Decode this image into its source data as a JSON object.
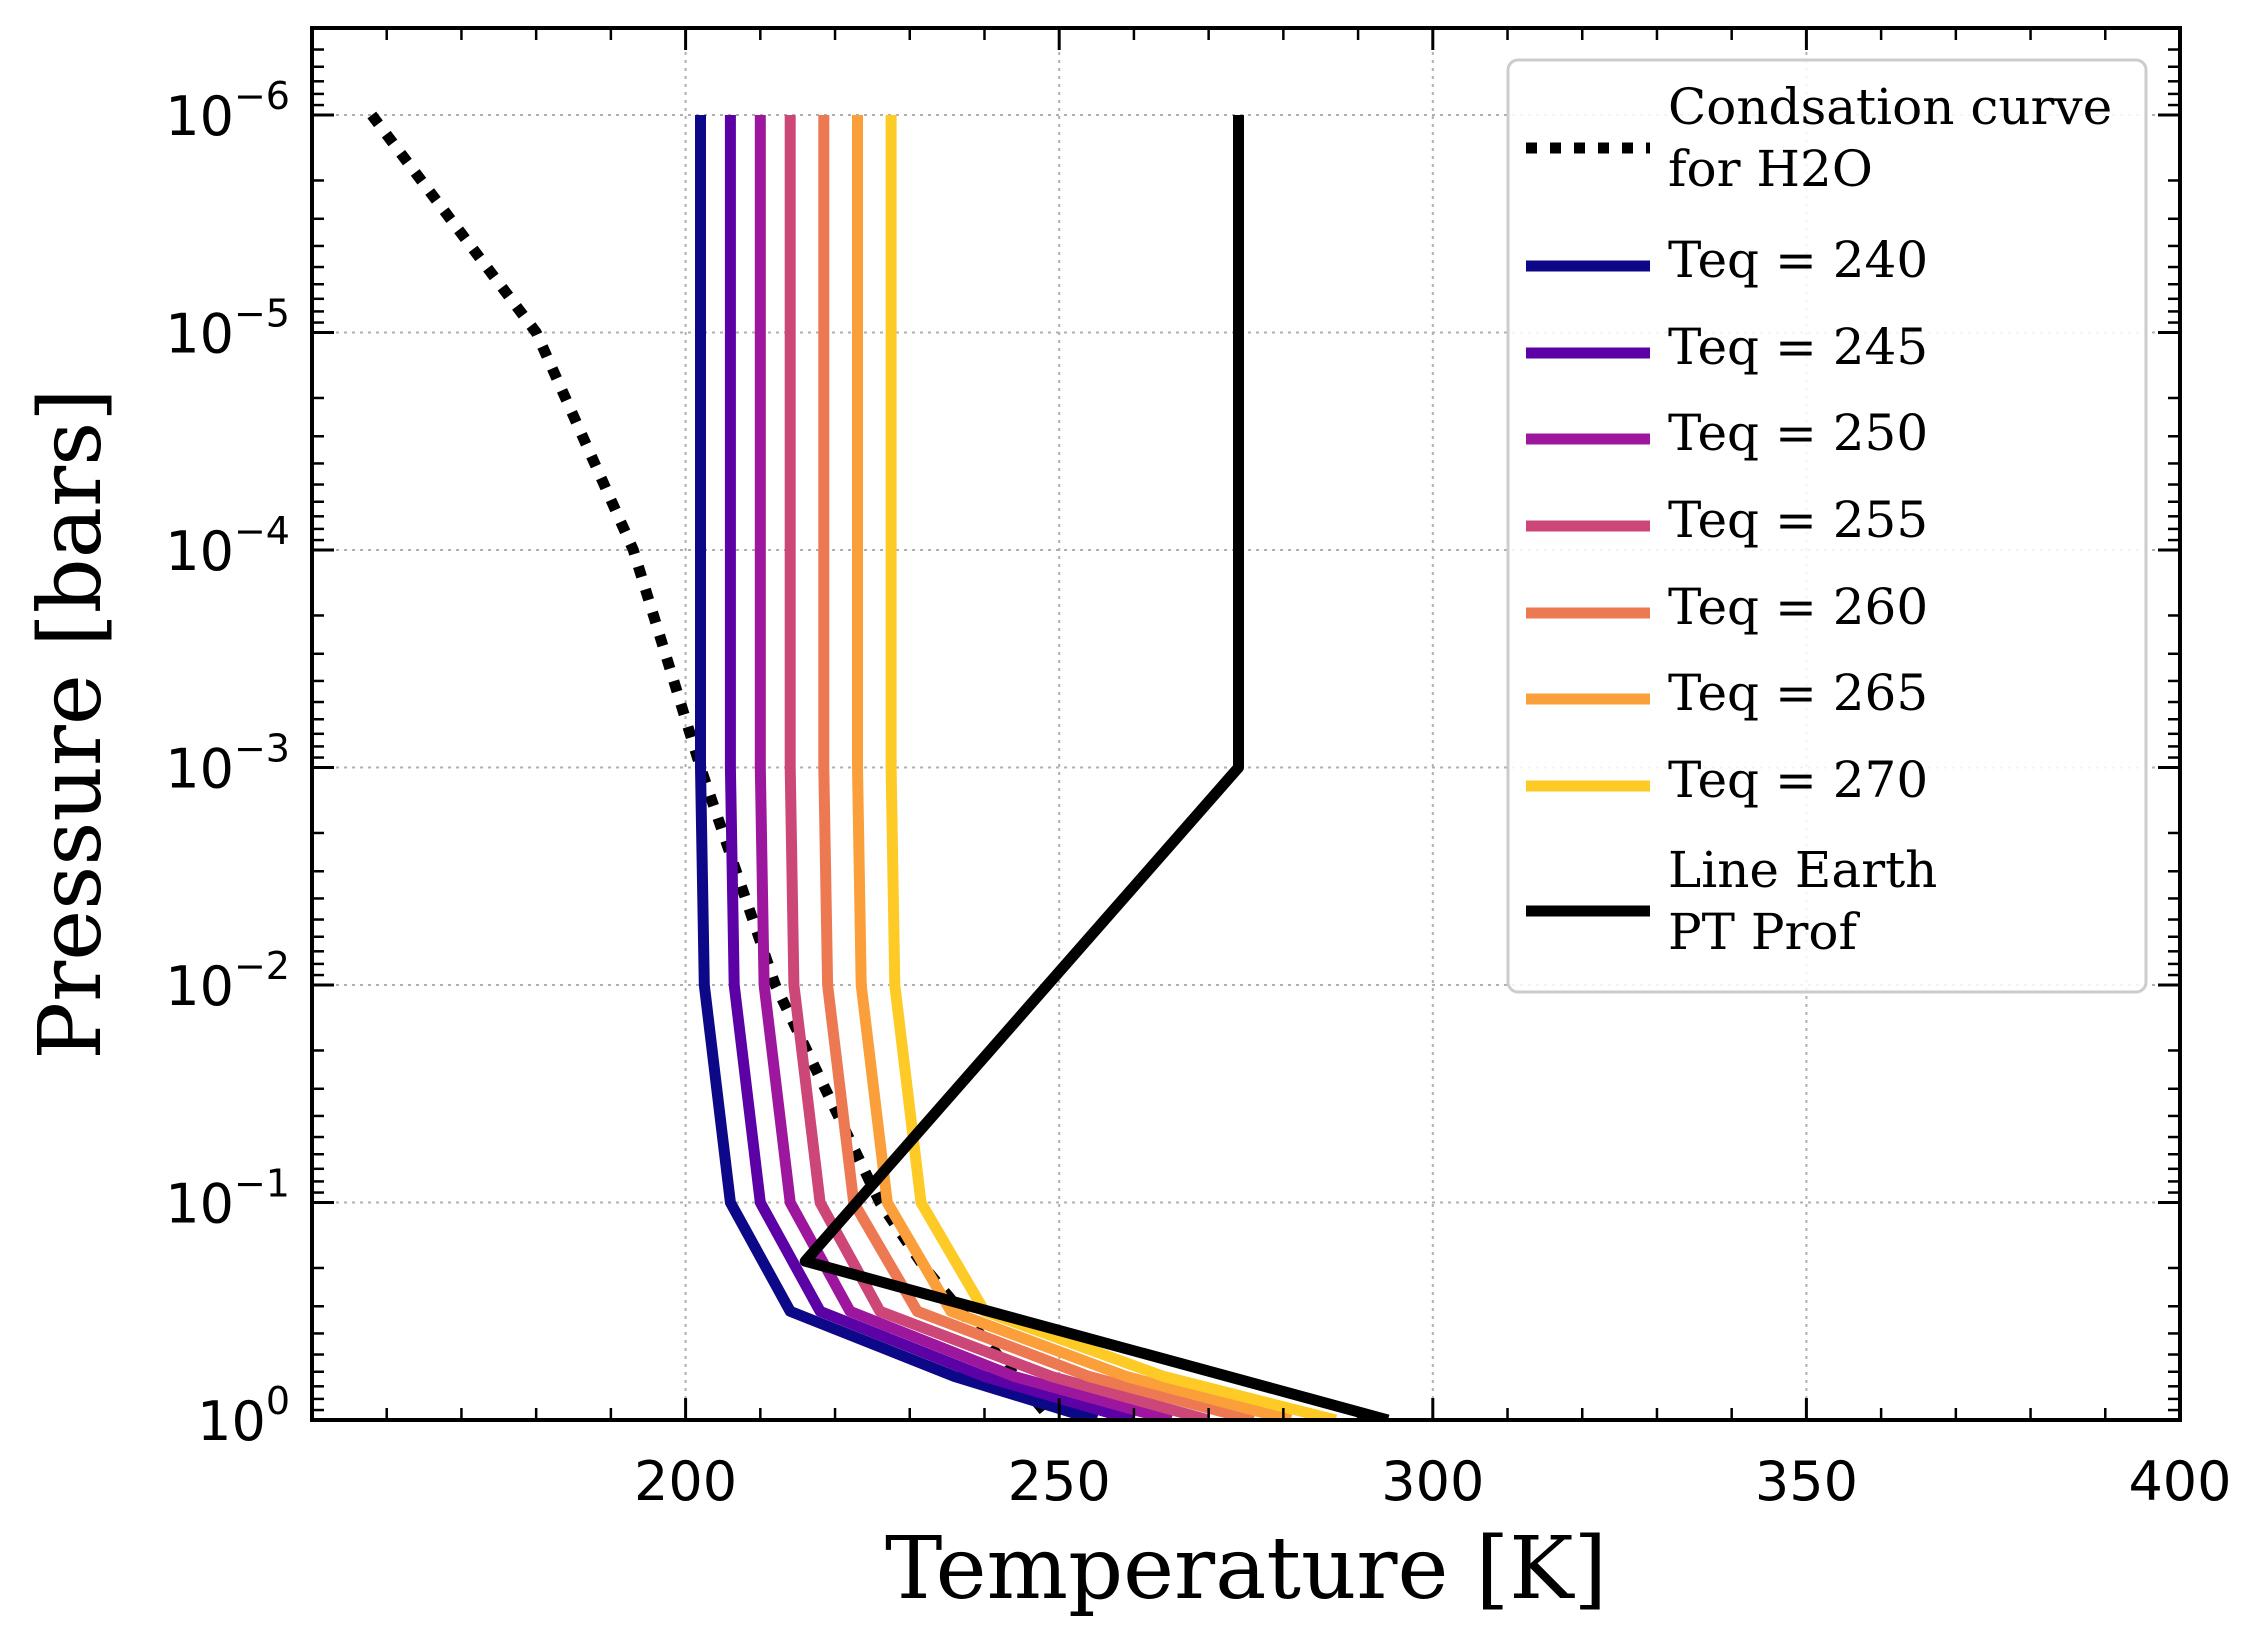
{
  "chart_data": {
    "type": "line",
    "xlabel": "Temperature [K]",
    "ylabel": "Pressure [bars]",
    "xlim": [
      150,
      400
    ],
    "ylim_exponent": [
      0,
      -6.4
    ],
    "yscale": "log (pressure increases downward)",
    "x_ticks": [
      "200",
      "250",
      "300",
      "350",
      "400"
    ],
    "x_tick_values": [
      200,
      250,
      300,
      350,
      400
    ],
    "y_ticks": [
      {
        "base": "10",
        "exp": "−6",
        "value": -6
      },
      {
        "base": "10",
        "exp": "−5",
        "value": -5
      },
      {
        "base": "10",
        "exp": "−4",
        "value": -4
      },
      {
        "base": "10",
        "exp": "−3",
        "value": -3
      },
      {
        "base": "10",
        "exp": "−2",
        "value": -2
      },
      {
        "base": "10",
        "exp": "−1",
        "value": -1
      },
      {
        "base": "10",
        "exp": "0",
        "value": 0
      }
    ],
    "grid": true,
    "legend_position": "top-right",
    "legend": [
      {
        "lines": [
          "Condsation curve",
          "for H2O"
        ],
        "color": "#000000",
        "style": "dotted"
      },
      {
        "lines": [
          "Teq = 240"
        ],
        "color": "#0d0887",
        "style": "solid"
      },
      {
        "lines": [
          "Teq = 245"
        ],
        "color": "#5c01a6",
        "style": "solid"
      },
      {
        "lines": [
          "Teq = 250"
        ],
        "color": "#9c179e",
        "style": "solid"
      },
      {
        "lines": [
          "Teq = 255"
        ],
        "color": "#cc4778",
        "style": "solid"
      },
      {
        "lines": [
          "Teq = 260"
        ],
        "color": "#ed7953",
        "style": "solid"
      },
      {
        "lines": [
          "Teq = 265"
        ],
        "color": "#fb9f3a",
        "style": "solid"
      },
      {
        "lines": [
          "Teq = 270"
        ],
        "color": "#fdca26",
        "style": "solid"
      },
      {
        "lines": [
          "Line Earth",
          "PT Prof"
        ],
        "color": "#000000",
        "style": "solid"
      }
    ],
    "series": [
      {
        "name": "Condsation curve for H2O",
        "color": "#000000",
        "style": "dotted",
        "points": [
          [
            158,
            -6
          ],
          [
            180,
            -5
          ],
          [
            193,
            -4
          ],
          [
            202,
            -3
          ],
          [
            212,
            -2
          ],
          [
            226,
            -1
          ],
          [
            232,
            -0.7
          ],
          [
            249,
            0
          ]
        ]
      },
      {
        "name": "Teq = 240",
        "color": "#0d0887",
        "style": "solid",
        "points": [
          [
            202,
            -6
          ],
          [
            202,
            -3
          ],
          [
            202.5,
            -2
          ],
          [
            206,
            -1
          ],
          [
            214,
            -0.5
          ],
          [
            236,
            -0.2
          ],
          [
            255,
            0
          ]
        ]
      },
      {
        "name": "Teq = 245",
        "color": "#5c01a6",
        "style": "solid",
        "points": [
          [
            206,
            -6
          ],
          [
            206,
            -3
          ],
          [
            206.5,
            -2
          ],
          [
            210,
            -1
          ],
          [
            218,
            -0.5
          ],
          [
            240,
            -0.2
          ],
          [
            260,
            0
          ]
        ]
      },
      {
        "name": "Teq = 250",
        "color": "#9c179e",
        "style": "solid",
        "points": [
          [
            210,
            -6
          ],
          [
            210,
            -3
          ],
          [
            210.5,
            -2
          ],
          [
            214,
            -1
          ],
          [
            222,
            -0.5
          ],
          [
            244,
            -0.2
          ],
          [
            265,
            0
          ]
        ]
      },
      {
        "name": "Teq = 255",
        "color": "#cc4778",
        "style": "solid",
        "points": [
          [
            214,
            -6
          ],
          [
            214,
            -3
          ],
          [
            214.5,
            -2
          ],
          [
            218,
            -1
          ],
          [
            226,
            -0.5
          ],
          [
            249,
            -0.2
          ],
          [
            270,
            0
          ]
        ]
      },
      {
        "name": "Teq = 260",
        "color": "#ed7953",
        "style": "solid",
        "points": [
          [
            218.5,
            -6
          ],
          [
            218.5,
            -3
          ],
          [
            219,
            -2
          ],
          [
            222.5,
            -1
          ],
          [
            231,
            -0.5
          ],
          [
            254,
            -0.2
          ],
          [
            276,
            0
          ]
        ]
      },
      {
        "name": "Teq = 265",
        "color": "#fb9f3a",
        "style": "solid",
        "points": [
          [
            223,
            -6
          ],
          [
            223,
            -3
          ],
          [
            223.5,
            -2
          ],
          [
            227,
            -1
          ],
          [
            235.5,
            -0.5
          ],
          [
            259,
            -0.2
          ],
          [
            281,
            0
          ]
        ]
      },
      {
        "name": "Teq = 270",
        "color": "#fdca26",
        "style": "solid",
        "points": [
          [
            227.5,
            -6
          ],
          [
            227.5,
            -3
          ],
          [
            228,
            -2
          ],
          [
            231.5,
            -1
          ],
          [
            240,
            -0.5
          ],
          [
            264,
            -0.2
          ],
          [
            287,
            0
          ]
        ]
      },
      {
        "name": "Line Earth PT Prof",
        "color": "#000000",
        "style": "solid",
        "points": [
          [
            274,
            -6
          ],
          [
            274,
            -3
          ],
          [
            216,
            -0.73
          ],
          [
            294,
            0
          ]
        ]
      }
    ]
  }
}
